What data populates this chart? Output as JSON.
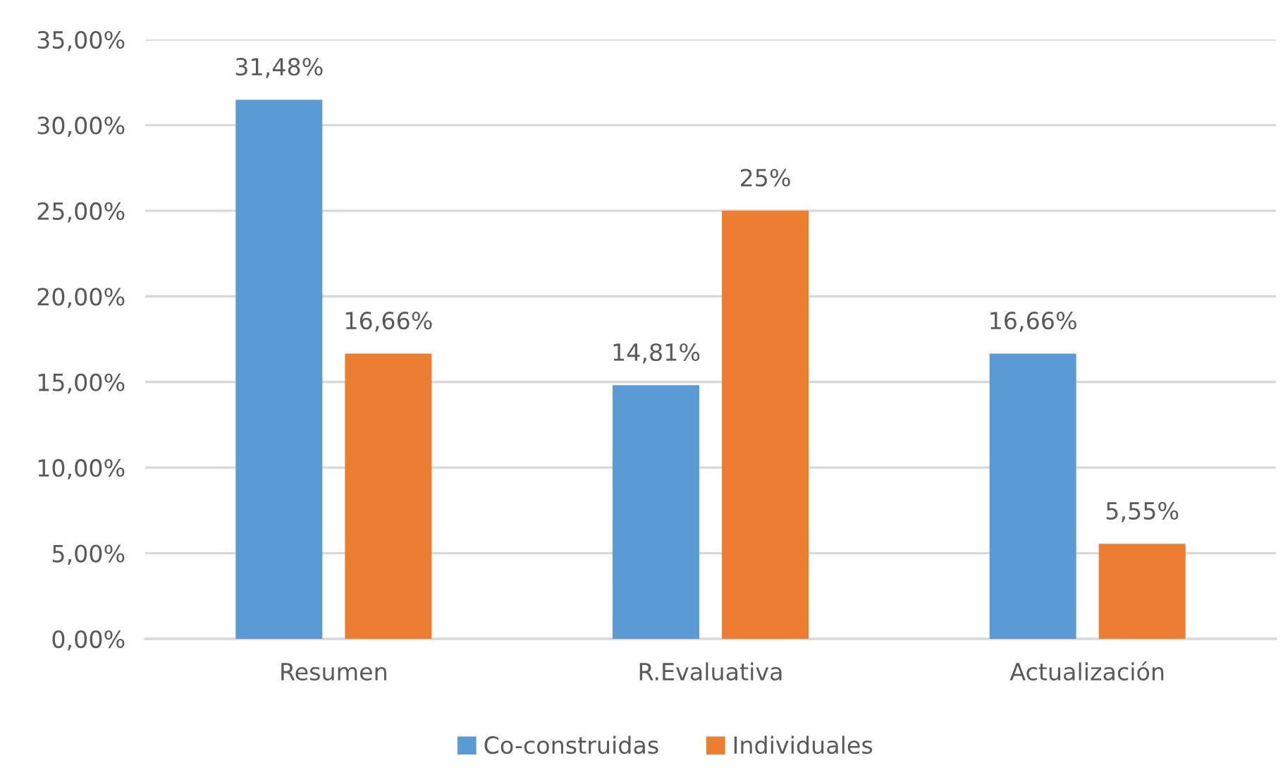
{
  "chart_data": {
    "type": "bar",
    "categories": [
      "Resumen",
      "R.Evaluativa",
      "Actualización"
    ],
    "series": [
      {
        "name": "Co-construidas",
        "color": "#5b9bd5",
        "values": [
          31.48,
          14.81,
          16.66
        ],
        "value_labels": [
          "31,48%",
          "14,81%",
          "16,66%"
        ]
      },
      {
        "name": "Individuales",
        "color": "#ed7d31",
        "values": [
          16.66,
          25,
          5.55
        ],
        "value_labels": [
          "16,66%",
          "25%",
          "5,55%"
        ]
      }
    ],
    "ylim": [
      0,
      35
    ],
    "yticks": [
      {
        "value": 0,
        "label": "0,00%"
      },
      {
        "value": 5,
        "label": "5,00%"
      },
      {
        "value": 10,
        "label": "10,00%"
      },
      {
        "value": 15,
        "label": "15,00%"
      },
      {
        "value": 20,
        "label": "20,00%"
      },
      {
        "value": 25,
        "label": "25,00%"
      },
      {
        "value": 30,
        "label": "30,00%"
      },
      {
        "value": 35,
        "label": "35,00%"
      }
    ],
    "grid": "y",
    "legend": "bottom"
  }
}
